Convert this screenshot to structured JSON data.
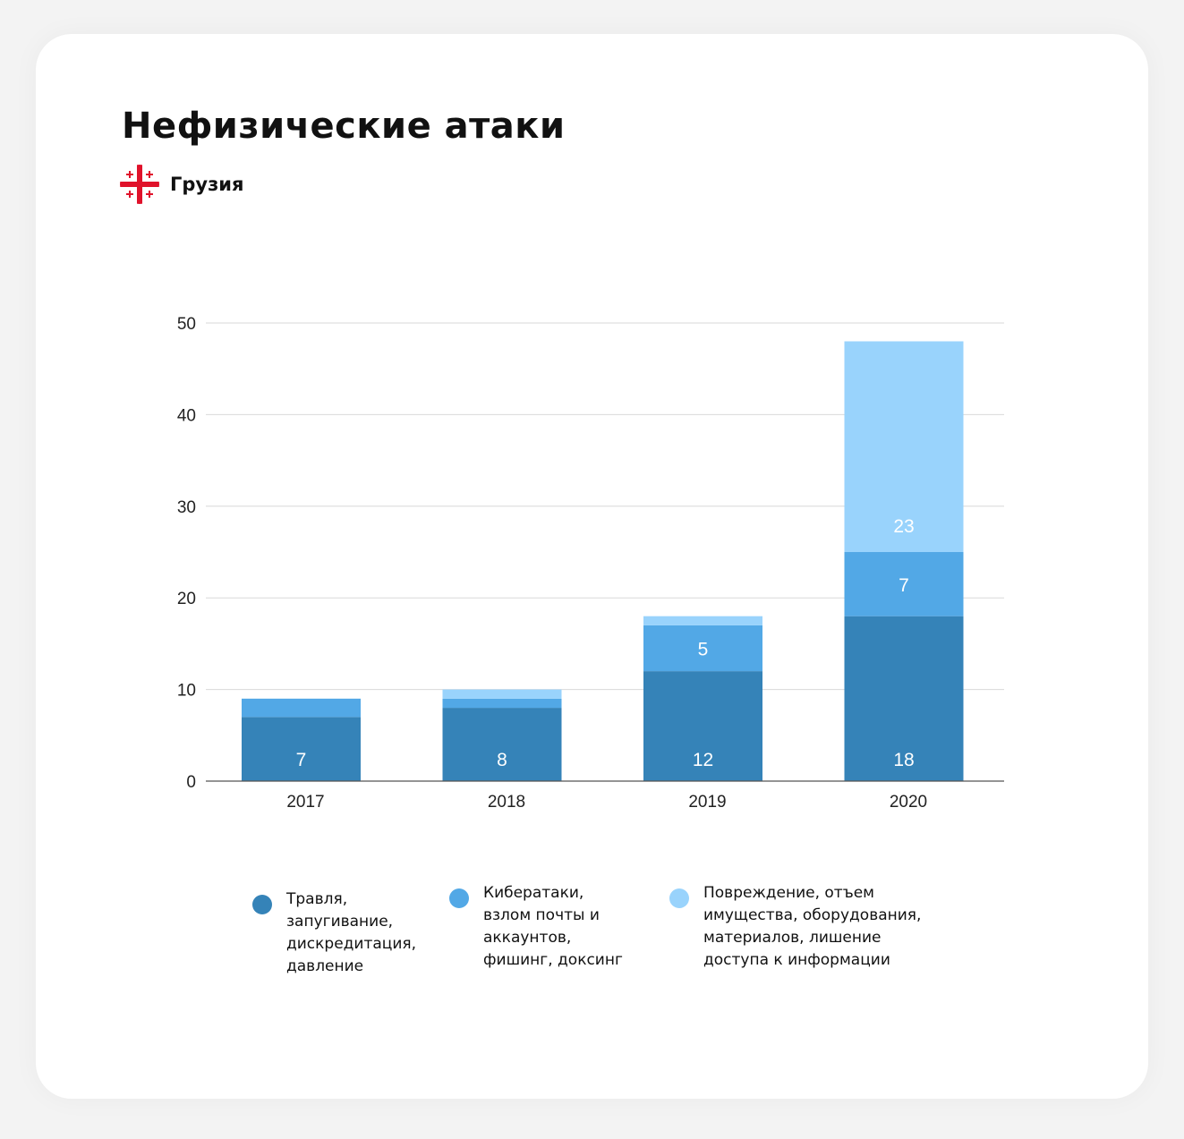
{
  "header": {
    "title": "Нефизические атаки",
    "country": "Грузия",
    "flag_icon": "georgia-flag-icon"
  },
  "colors": {
    "series_1": "#3583b8",
    "series_2": "#52a8e6",
    "series_3": "#99d3fc",
    "flag_red": "#e0122b",
    "grid": "#d9d9d9",
    "axis": "#555555"
  },
  "chart_data": {
    "type": "bar",
    "stacked": true,
    "title": "",
    "xlabel": "",
    "ylabel": "",
    "categories": [
      "2017",
      "2018",
      "2019",
      "2020"
    ],
    "ylim": [
      0,
      50
    ],
    "yticks": [
      0,
      10,
      20,
      30,
      40,
      50
    ],
    "grid": true,
    "legend_position": "bottom",
    "series": [
      {
        "name": "Травля, запугивание, дискредитация, давление",
        "values": [
          7,
          8,
          12,
          18
        ],
        "labels": [
          "7",
          "8",
          "12",
          "18"
        ]
      },
      {
        "name": "Кибератаки, взлом почты и аккаунтов, фишинг, доксинг",
        "values": [
          2,
          1,
          5,
          7
        ],
        "labels": [
          "",
          "",
          "5",
          "7"
        ]
      },
      {
        "name": "Повреждение, отъем имущества, оборудования, материалов, лишение доступа к информации",
        "values": [
          0,
          1,
          1,
          23
        ],
        "labels": [
          "",
          "",
          "",
          "23"
        ]
      }
    ]
  },
  "legend": {
    "items": [
      {
        "text": "Травля,\nзапугивание,\nдискредитация,\nдавление"
      },
      {
        "text": "Кибератаки,\nвзлом почты и\nаккаунтов,\nфишинг, доксинг"
      },
      {
        "text": "Повреждение, отъем\nимущества, оборудования,\nматериалов, лишение\nдоступа к информации"
      }
    ]
  }
}
